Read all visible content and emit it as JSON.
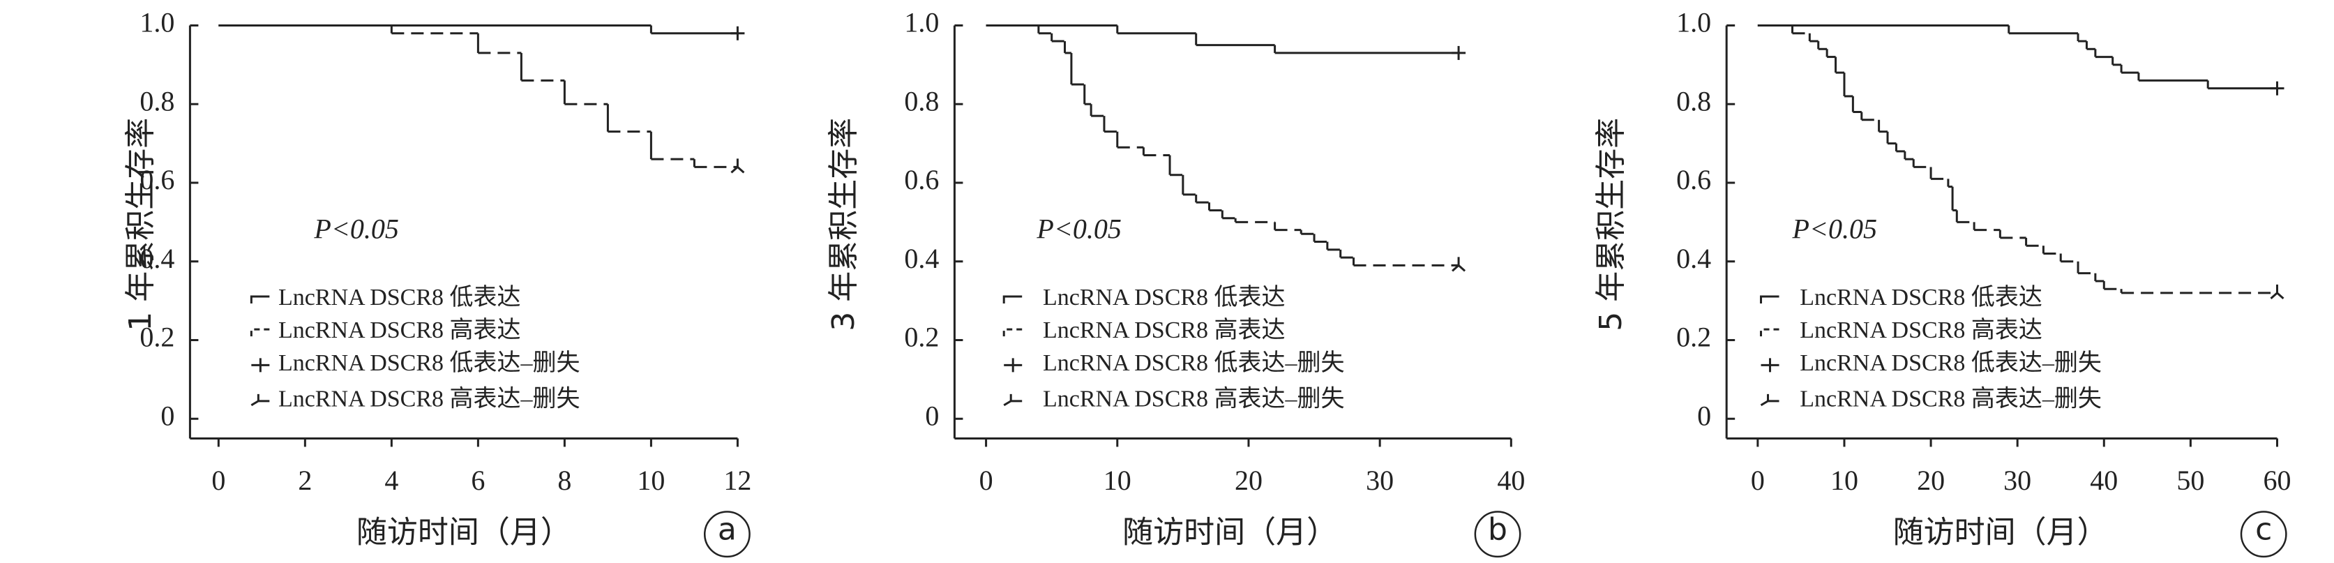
{
  "chart_data": [
    {
      "type": "line",
      "drawstyle": "steps-post",
      "ylabel": "1 年累积生存率",
      "xlabel": "随访时间（月）",
      "annotation": "P<0.05",
      "panel_label": "a",
      "xlim": [
        -0.66,
        12
      ],
      "xticks": [
        0,
        2,
        4,
        6,
        8,
        10,
        12
      ],
      "ylim": [
        -0.05,
        1.0
      ],
      "yticks": [
        0,
        0.2,
        0.4,
        0.6,
        0.8,
        {
          "value": 1,
          "label": "1.0"
        }
      ],
      "series": [
        {
          "name": "LncRNA DSCR8 低表达",
          "color": "#222222",
          "style": "solid",
          "x": [
            0,
            10,
            12
          ],
          "values": [
            1.0,
            0.98,
            0.98
          ]
        },
        {
          "name": "LncRNA DSCR8 高表达",
          "color": "#222222",
          "style": "dashed",
          "x": [
            0,
            4,
            6,
            7,
            8,
            9,
            10,
            11,
            12
          ],
          "values": [
            1.0,
            0.98,
            0.93,
            0.86,
            0.8,
            0.73,
            0.66,
            0.64,
            0.64
          ]
        },
        {
          "name": "LncRNA DSCR8 低表达–删失",
          "color": "#222222",
          "style": "censor-plus",
          "x": [
            12
          ],
          "values": [
            0.98
          ]
        },
        {
          "name": "LncRNA DSCR8 高表达–删失",
          "color": "#222222",
          "style": "censor-tick",
          "x": [
            12
          ],
          "values": [
            0.64
          ]
        }
      ]
    },
    {
      "type": "line",
      "drawstyle": "steps-post",
      "ylabel": "3 年累积生存率",
      "xlabel": "随访时间（月）",
      "annotation": "P<0.05",
      "panel_label": "b",
      "xlim": [
        -2.4,
        40
      ],
      "xticks": [
        0,
        10,
        20,
        30,
        40
      ],
      "ylim": [
        -0.05,
        1.0
      ],
      "yticks": [
        0,
        0.2,
        0.4,
        0.6,
        0.8,
        {
          "value": 1,
          "label": "1.0"
        }
      ],
      "series": [
        {
          "name": "LncRNA DSCR8 低表达",
          "color": "#222222",
          "style": "solid",
          "x": [
            0,
            10,
            16,
            22,
            36
          ],
          "values": [
            1.0,
            0.98,
            0.95,
            0.93,
            0.93
          ]
        },
        {
          "name": "LncRNA DSCR8 高表达",
          "color": "#222222",
          "style": "dashed",
          "x": [
            0,
            4,
            5,
            6,
            6.5,
            7.5,
            8,
            9,
            10,
            12,
            14,
            15,
            16,
            17,
            18,
            19,
            22,
            24,
            25,
            26,
            27,
            28,
            36
          ],
          "values": [
            1.0,
            0.98,
            0.96,
            0.93,
            0.85,
            0.8,
            0.77,
            0.73,
            0.69,
            0.67,
            0.62,
            0.57,
            0.55,
            0.53,
            0.51,
            0.5,
            0.48,
            0.47,
            0.45,
            0.43,
            0.41,
            0.39,
            0.39
          ]
        },
        {
          "name": "LncRNA DSCR8 低表达–删失",
          "color": "#222222",
          "style": "censor-plus",
          "x": [
            36
          ],
          "values": [
            0.93
          ]
        },
        {
          "name": "LncRNA DSCR8 高表达–删失",
          "color": "#222222",
          "style": "censor-tick",
          "x": [
            36
          ],
          "values": [
            0.39
          ]
        }
      ]
    },
    {
      "type": "line",
      "drawstyle": "steps-post",
      "ylabel": "5 年累积生存率",
      "xlabel": "随访时间（月）",
      "annotation": "P<0.05",
      "panel_label": "c",
      "xlim": [
        -3.6,
        60
      ],
      "xticks": [
        0,
        10,
        20,
        30,
        40,
        50,
        60
      ],
      "ylim": [
        -0.05,
        1.0
      ],
      "yticks": [
        0,
        0.2,
        0.4,
        0.6,
        0.8,
        {
          "value": 1,
          "label": "1.0"
        }
      ],
      "series": [
        {
          "name": "LncRNA DSCR8 低表达",
          "color": "#222222",
          "style": "solid",
          "x": [
            0,
            29,
            37,
            38,
            39,
            41,
            42,
            44,
            52,
            60
          ],
          "values": [
            1.0,
            0.98,
            0.96,
            0.94,
            0.92,
            0.9,
            0.88,
            0.86,
            0.84,
            0.84
          ]
        },
        {
          "name": "LncRNA DSCR8 高表达",
          "color": "#222222",
          "style": "dashed",
          "x": [
            0,
            4,
            6,
            7,
            8,
            9,
            10,
            11,
            12,
            14,
            15,
            16,
            17,
            18,
            20,
            22,
            22.5,
            23,
            25,
            28,
            31,
            33,
            35,
            37,
            39,
            40,
            42,
            60
          ],
          "values": [
            1.0,
            0.98,
            0.96,
            0.94,
            0.92,
            0.88,
            0.82,
            0.78,
            0.76,
            0.73,
            0.7,
            0.68,
            0.66,
            0.64,
            0.61,
            0.59,
            0.53,
            0.5,
            0.48,
            0.46,
            0.44,
            0.42,
            0.4,
            0.37,
            0.35,
            0.33,
            0.32,
            0.32
          ]
        },
        {
          "name": "LncRNA DSCR8 低表达–删失",
          "color": "#222222",
          "style": "censor-plus",
          "x": [
            60
          ],
          "values": [
            0.84
          ]
        },
        {
          "name": "LncRNA DSCR8 高表达–删失",
          "color": "#222222",
          "style": "censor-tick",
          "x": [
            60
          ],
          "values": [
            0.32
          ]
        }
      ]
    }
  ]
}
